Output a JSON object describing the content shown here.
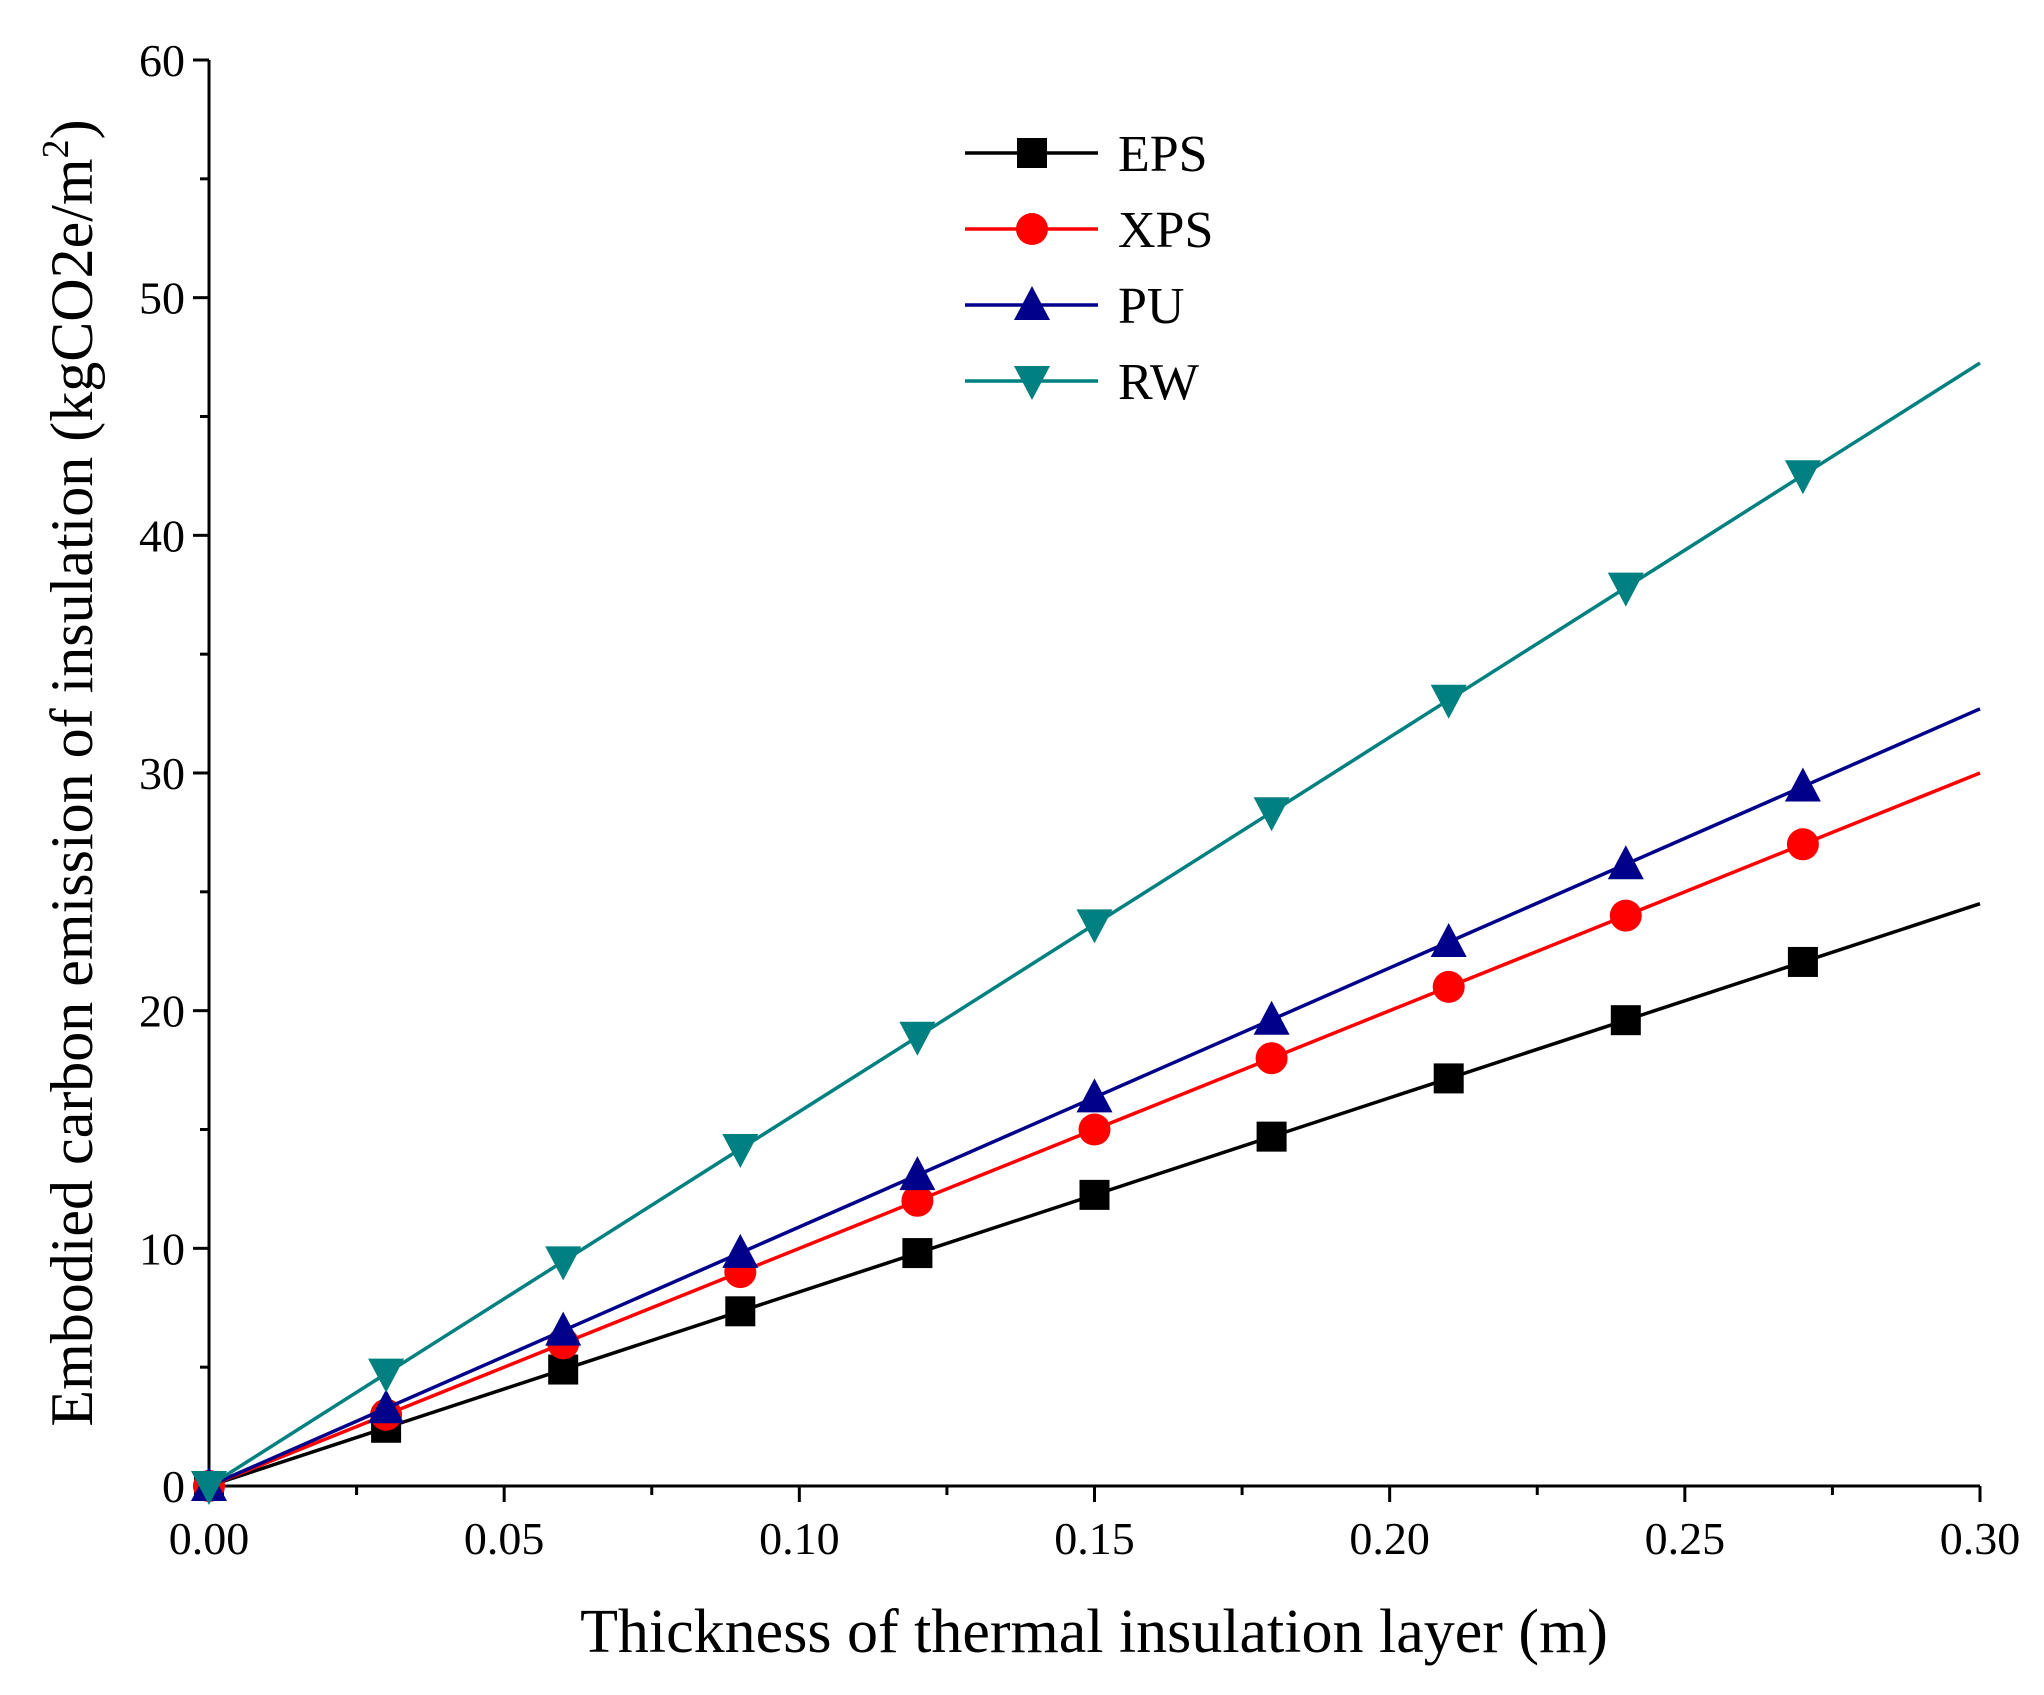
{
  "chart_data": {
    "type": "line",
    "title": "",
    "xlabel": "Thickness of thermal insulation layer (m)",
    "ylabel": "Embodied carbon emission of insulation (kgCO2e/m",
    "ylabel_superscript": "2",
    "ylabel_close": ")",
    "xlim": [
      0,
      0.3
    ],
    "ylim": [
      0,
      60
    ],
    "xticks": [
      "0.00",
      "0.05",
      "0.10",
      "0.15",
      "0.20",
      "0.25",
      "0.30"
    ],
    "yticks": [
      "0",
      "10",
      "20",
      "30",
      "40",
      "50",
      "60"
    ],
    "grid": false,
    "legend_position": "top-center",
    "x": [
      0,
      0.03,
      0.06,
      0.09,
      0.12,
      0.15,
      0.18,
      0.21,
      0.24,
      0.27,
      0.3
    ],
    "markers_on_last_point": false,
    "series": [
      {
        "name": "EPS",
        "color": "#000000",
        "marker": "square",
        "values": [
          0,
          2.45,
          4.9,
          7.35,
          9.8,
          12.25,
          14.7,
          17.15,
          19.6,
          22.05,
          24.5
        ]
      },
      {
        "name": "XPS",
        "color": "#ff0000",
        "marker": "circle",
        "values": [
          0,
          3.0,
          6.0,
          9.0,
          12.0,
          15.0,
          18.0,
          21.0,
          24.0,
          27.0,
          30.0
        ]
      },
      {
        "name": "PU",
        "color": "#00008b",
        "marker": "triangle-up",
        "values": [
          0,
          3.27,
          6.54,
          9.81,
          13.08,
          16.35,
          19.62,
          22.89,
          26.16,
          29.43,
          32.7
        ]
      },
      {
        "name": "RW",
        "color": "#008080",
        "marker": "triangle-down",
        "values": [
          0,
          4.73,
          9.45,
          14.18,
          18.9,
          23.63,
          28.35,
          33.08,
          37.8,
          42.53,
          47.25
        ]
      }
    ]
  }
}
